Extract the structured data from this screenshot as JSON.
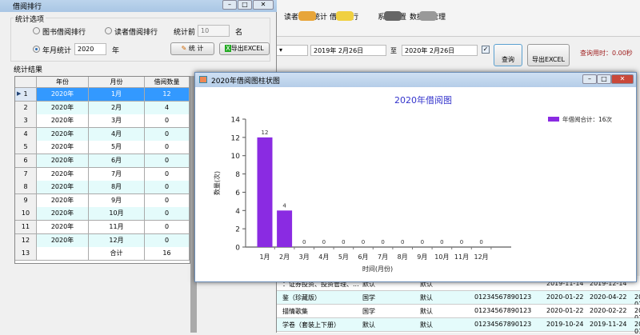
{
  "main_toolbar": {
    "items": [
      "读者借阅统计",
      "借阅排行",
      "系统配置",
      "数据库管理"
    ]
  },
  "filter": {
    "from_date": "2019年 2月26日",
    "to_label": "至",
    "to_date": "2020年 2月26日",
    "query_btn": "查询",
    "export_btn": "导出EXCEL",
    "elapsed": "查询用时：0.00秒",
    "checked": true
  },
  "bg_table": {
    "rows": [
      [
        "：证券投资、投资管理、...",
        "默认",
        "默认",
        "",
        "2019-11-14",
        "2019-12-14",
        ""
      ],
      [
        "鉴（珍藏版）",
        "国学",
        "默认",
        "01234567890123",
        "2020-01-22",
        "2020-04-22",
        "2020-01-2"
      ],
      [
        "描情歌集",
        "国学",
        "默认",
        "01234567890123",
        "2020-01-22",
        "2020-02-22",
        "2020-01-2"
      ],
      [
        "学卷（套装上下册）",
        "默认",
        "默认",
        "01234567890123",
        "2019-10-24",
        "2019-11-24",
        "2020-01-2"
      ]
    ]
  },
  "window": {
    "title": "借阅排行",
    "options": {
      "legend": "统计选项",
      "book_rank": "图书借阅排行",
      "reader_rank": "读者借阅排行",
      "top_label": "统计前",
      "top_value": "10",
      "top_unit": "名",
      "yearly": "年月统计",
      "year_value": "2020",
      "year_unit": "年",
      "stat_btn": "统  计",
      "export_btn": "导出EXCEL",
      "selected": "年月统计"
    },
    "results": {
      "legend": "统计结果",
      "columns": [
        "年份",
        "月份",
        "借阅数量"
      ],
      "rows": [
        [
          "1",
          "2020年",
          "1月",
          "12"
        ],
        [
          "2",
          "2020年",
          "2月",
          "4"
        ],
        [
          "3",
          "2020年",
          "3月",
          "0"
        ],
        [
          "4",
          "2020年",
          "4月",
          "0"
        ],
        [
          "5",
          "2020年",
          "5月",
          "0"
        ],
        [
          "6",
          "2020年",
          "6月",
          "0"
        ],
        [
          "7",
          "2020年",
          "7月",
          "0"
        ],
        [
          "8",
          "2020年",
          "8月",
          "0"
        ],
        [
          "9",
          "2020年",
          "9月",
          "0"
        ],
        [
          "10",
          "2020年",
          "10月",
          "0"
        ],
        [
          "11",
          "2020年",
          "11月",
          "0"
        ],
        [
          "12",
          "2020年",
          "12月",
          "0"
        ],
        [
          "13",
          "",
          "合计",
          "16"
        ]
      ]
    }
  },
  "chart_window": {
    "title": "2020年借阅图柱状图"
  },
  "chart_data": {
    "type": "bar",
    "title": "2020年借阅图",
    "xlabel": "时间(月份)",
    "ylabel": "数量(次)",
    "categories": [
      "1月",
      "2月",
      "3月",
      "4月",
      "5月",
      "6月",
      "7月",
      "8月",
      "9月",
      "10月",
      "11月",
      "12月"
    ],
    "series": [
      {
        "name": "年借阅合计：16次",
        "values": [
          12,
          4,
          0,
          0,
          0,
          0,
          0,
          0,
          0,
          0,
          0,
          0
        ]
      }
    ],
    "ylim": [
      0,
      14
    ],
    "yticks": [
      0,
      2,
      4,
      6,
      8,
      10,
      12,
      14
    ],
    "legend": "top-right",
    "bar_color": "#8a2be2",
    "title_color": "#3333cc",
    "grid": false
  }
}
